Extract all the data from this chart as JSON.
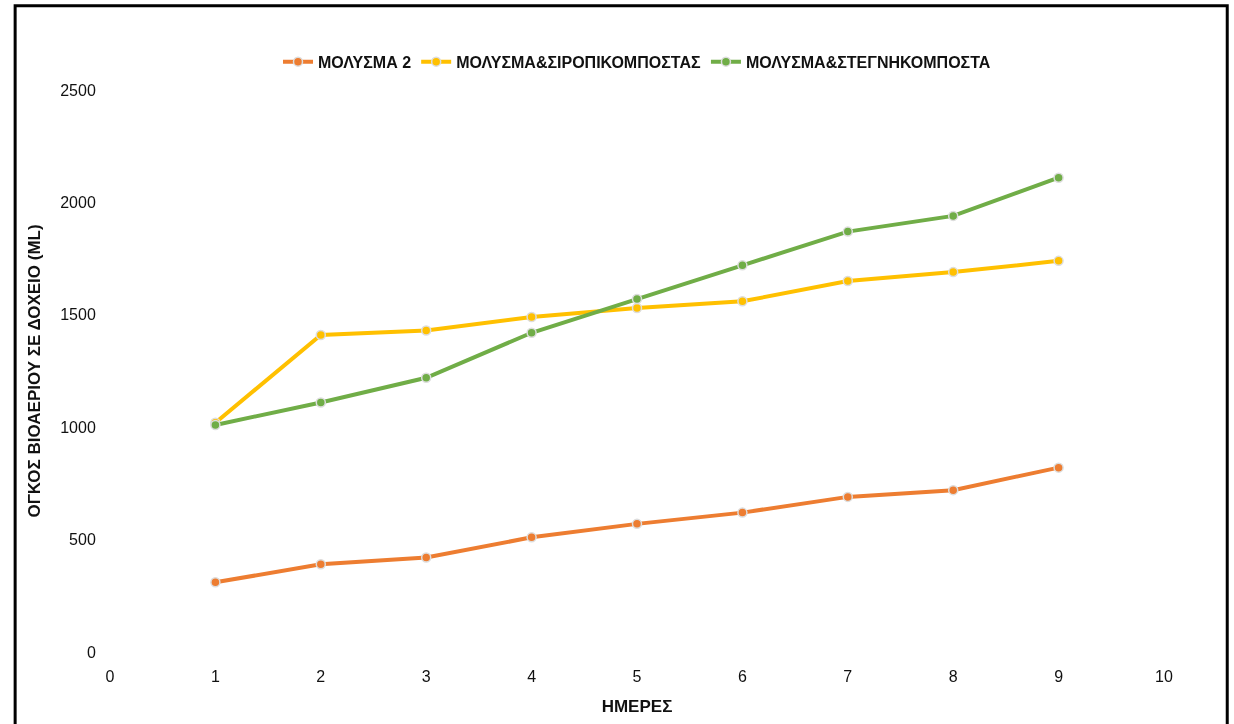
{
  "chart_data": {
    "type": "line",
    "xlabel": "ΗΜΕΡΕΣ",
    "ylabel": "ΟΓΚΟΣ ΒΙΟΑΕΡΙΟΥ ΣΕ ΔΟΧΕΙΟ (ML)",
    "x": [
      1,
      2,
      3,
      4,
      5,
      6,
      7,
      8,
      9
    ],
    "series": [
      {
        "name": "ΜΟΛΥΣΜΑ 2",
        "color": "#ed7d31",
        "values": [
          310,
          390,
          420,
          510,
          570,
          620,
          690,
          720,
          820
        ]
      },
      {
        "name": "ΜΟΛΥΣΜΑ&ΣΙΡΟΠΙΚΟΜΠΟΣΤΑΣ",
        "color": "#ffc000",
        "values": [
          1020,
          1410,
          1430,
          1490,
          1530,
          1560,
          1650,
          1690,
          1740
        ]
      },
      {
        "name": "ΜΟΛΥΣΜΑ&ΣΤΕΓΝΗΚΟΜΠΟΣΤΑ",
        "color": "#70ad47",
        "values": [
          1010,
          1110,
          1220,
          1420,
          1570,
          1720,
          1870,
          1940,
          2110
        ]
      }
    ],
    "xlim": [
      0,
      10
    ],
    "xticks": [
      0,
      1,
      2,
      3,
      4,
      5,
      6,
      7,
      8,
      9,
      10
    ],
    "ylim": [
      0,
      2500
    ],
    "yticks": [
      0,
      500,
      1000,
      1500,
      2000,
      2500
    ],
    "legend": "top",
    "marker": "circle",
    "line_style": "solid"
  }
}
